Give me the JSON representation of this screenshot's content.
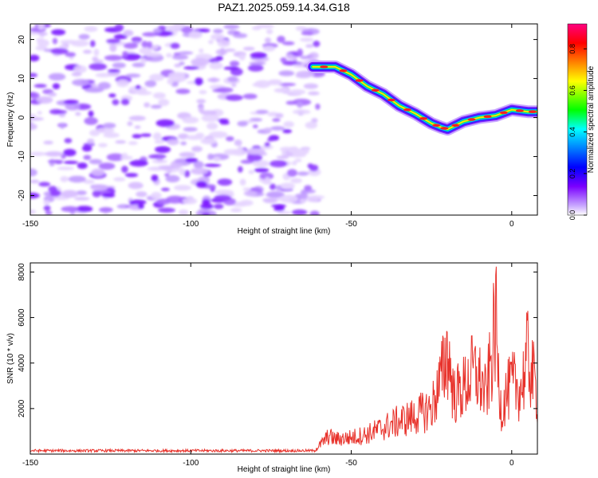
{
  "figure": {
    "title": "PAZ1.2025.059.14.34.G18"
  },
  "chart_data": [
    {
      "type": "heatmap",
      "title": "PAZ1.2025.059.14.34.G18",
      "xlabel": "Height of straight line (km)",
      "ylabel": "Frequency (Hz)",
      "xlim": [
        -150,
        8
      ],
      "ylim": [
        -25,
        24
      ],
      "x_ticks": [
        -150,
        -100,
        -50,
        0
      ],
      "y_ticks": [
        -20,
        -10,
        0,
        10,
        20
      ],
      "noise_region": {
        "x_range": [
          -150,
          -60
        ],
        "y_range": [
          -25,
          24
        ],
        "level": "low (0.05-0.25)"
      },
      "ridge": {
        "x": [
          -62,
          -55,
          -50,
          -45,
          -40,
          -35,
          -30,
          -25,
          -22,
          -20,
          -15,
          -10,
          -5,
          0,
          5,
          8
        ],
        "y": [
          13,
          13,
          11,
          8,
          6,
          3,
          1,
          -1.5,
          -2.5,
          -3,
          -1,
          0,
          0.5,
          2,
          1.5,
          1.5
        ]
      },
      "colorbar": {
        "label": "Normalized spectral amplitude",
        "range": [
          0,
          0.92
        ],
        "ticks": [
          0.0,
          0.2,
          0.4,
          0.6,
          0.8
        ],
        "colormap": "rainbow (white-purple-blue-cyan-green-yellow-orange-red-pink)"
      }
    },
    {
      "type": "line",
      "xlabel": "Height of straight line (km)",
      "ylabel": "SNR (10 * v/v)",
      "xlim": [
        -150,
        8
      ],
      "ylim": [
        0,
        8400
      ],
      "x_ticks": [
        -150,
        -100,
        -50,
        0
      ],
      "y_ticks": [
        2000,
        4000,
        6000,
        8000
      ],
      "line_color": "#e8322b",
      "series": [
        {
          "envelope_x": [
            -150,
            -100,
            -62,
            -60,
            -57,
            -55,
            -50,
            -45,
            -40,
            -35,
            -30,
            -25,
            -22,
            -20,
            -18,
            -15,
            -12,
            -10,
            -8,
            -6,
            -5,
            -4,
            -3,
            -2,
            0,
            3,
            5,
            8
          ],
          "envelope_y": [
            150,
            150,
            150,
            500,
            1100,
            900,
            1000,
            1200,
            1600,
            2000,
            2300,
            2800,
            4500,
            6300,
            3500,
            4000,
            5000,
            4500,
            3500,
            6200,
            8300,
            4000,
            2500,
            3500,
            4200,
            4000,
            6000,
            3500
          ]
        }
      ]
    }
  ]
}
